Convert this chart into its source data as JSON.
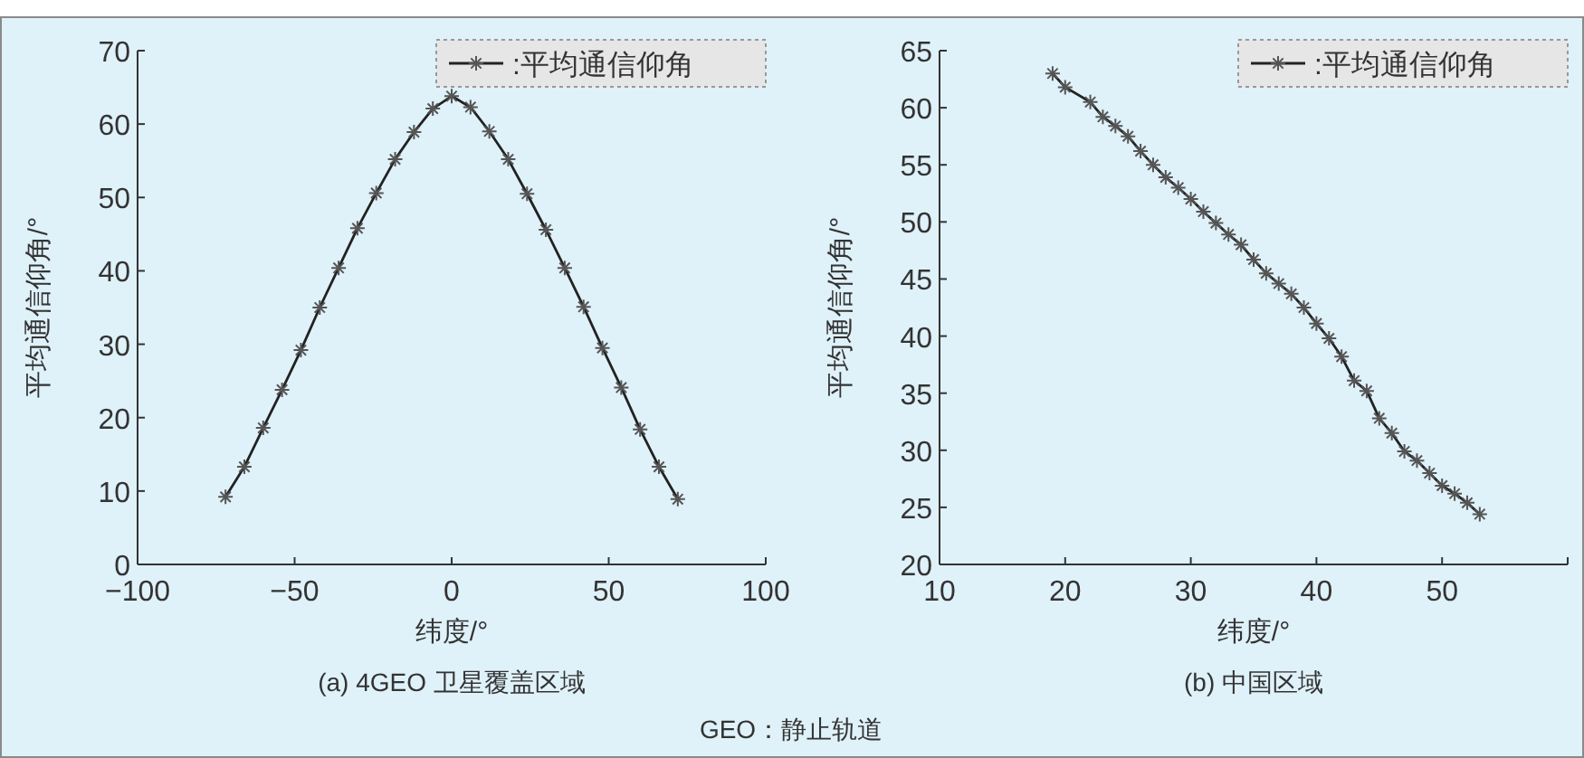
{
  "chart_data": [
    {
      "type": "line",
      "title": "(a) 4GEO 卫星覆盖区域",
      "xlabel": "纬度/°",
      "ylabel": "平均通信仰角/°",
      "x": [
        -72,
        -66,
        -60,
        -54,
        -48,
        -42,
        -36,
        -30,
        -24,
        -18,
        -12,
        -6,
        0,
        6,
        12,
        18,
        24,
        30,
        36,
        42,
        48,
        54,
        60,
        66,
        72
      ],
      "series": [
        {
          "name": ":平均通信仰角",
          "color": "#222222",
          "values": [
            9.2,
            13.3,
            18.6,
            23.8,
            29.2,
            35.0,
            40.4,
            45.8,
            50.6,
            55.2,
            58.9,
            62.1,
            63.8,
            62.3,
            59.0,
            55.2,
            50.5,
            45.6,
            40.4,
            35.1,
            29.5,
            24.1,
            18.4,
            13.3,
            8.9
          ]
        }
      ],
      "xlim": [
        -100,
        100
      ],
      "xticks": [
        -100,
        -50,
        0,
        50,
        100
      ],
      "ylim": [
        0,
        70
      ],
      "yticks": [
        0,
        10,
        20,
        30,
        40,
        50,
        60,
        70
      ],
      "marker": "cross",
      "line_style": "solid",
      "legend": "top right",
      "grid": false,
      "annotations": [
        "GEO：静止轨道"
      ]
    },
    {
      "type": "line",
      "title": "(b) 中国区域",
      "xlabel": "纬度/°",
      "ylabel": "平均通信仰角/°",
      "x": [
        19,
        20,
        22,
        23,
        24,
        25,
        26,
        27,
        28,
        29,
        30,
        31,
        32,
        33,
        34,
        35,
        36,
        37,
        38,
        39,
        40,
        41,
        42,
        43,
        44,
        45,
        46,
        47,
        48,
        49,
        50,
        51,
        52,
        53
      ],
      "series": [
        {
          "name": ":平均通信仰角",
          "color": "#222222",
          "values": [
            63.0,
            61.8,
            60.5,
            59.2,
            58.4,
            57.5,
            56.2,
            55.0,
            53.9,
            53.0,
            52.0,
            50.9,
            49.9,
            48.9,
            48.0,
            46.7,
            45.5,
            44.6,
            43.7,
            42.5,
            41.1,
            39.8,
            38.2,
            36.1,
            35.2,
            32.8,
            31.5,
            29.9,
            29.1,
            28.0,
            26.9,
            26.2,
            25.4,
            24.4
          ]
        }
      ],
      "xlim": [
        10,
        60
      ],
      "xticks": [
        10,
        20,
        30,
        40,
        50,
        {
          "value": 60,
          "label": null
        }
      ],
      "ylim": [
        20,
        65
      ],
      "yticks": [
        20,
        25,
        30,
        35,
        40,
        45,
        50,
        55,
        60,
        65
      ],
      "marker": "cross",
      "line_style": "solid",
      "legend": "top right",
      "grid": false
    }
  ]
}
